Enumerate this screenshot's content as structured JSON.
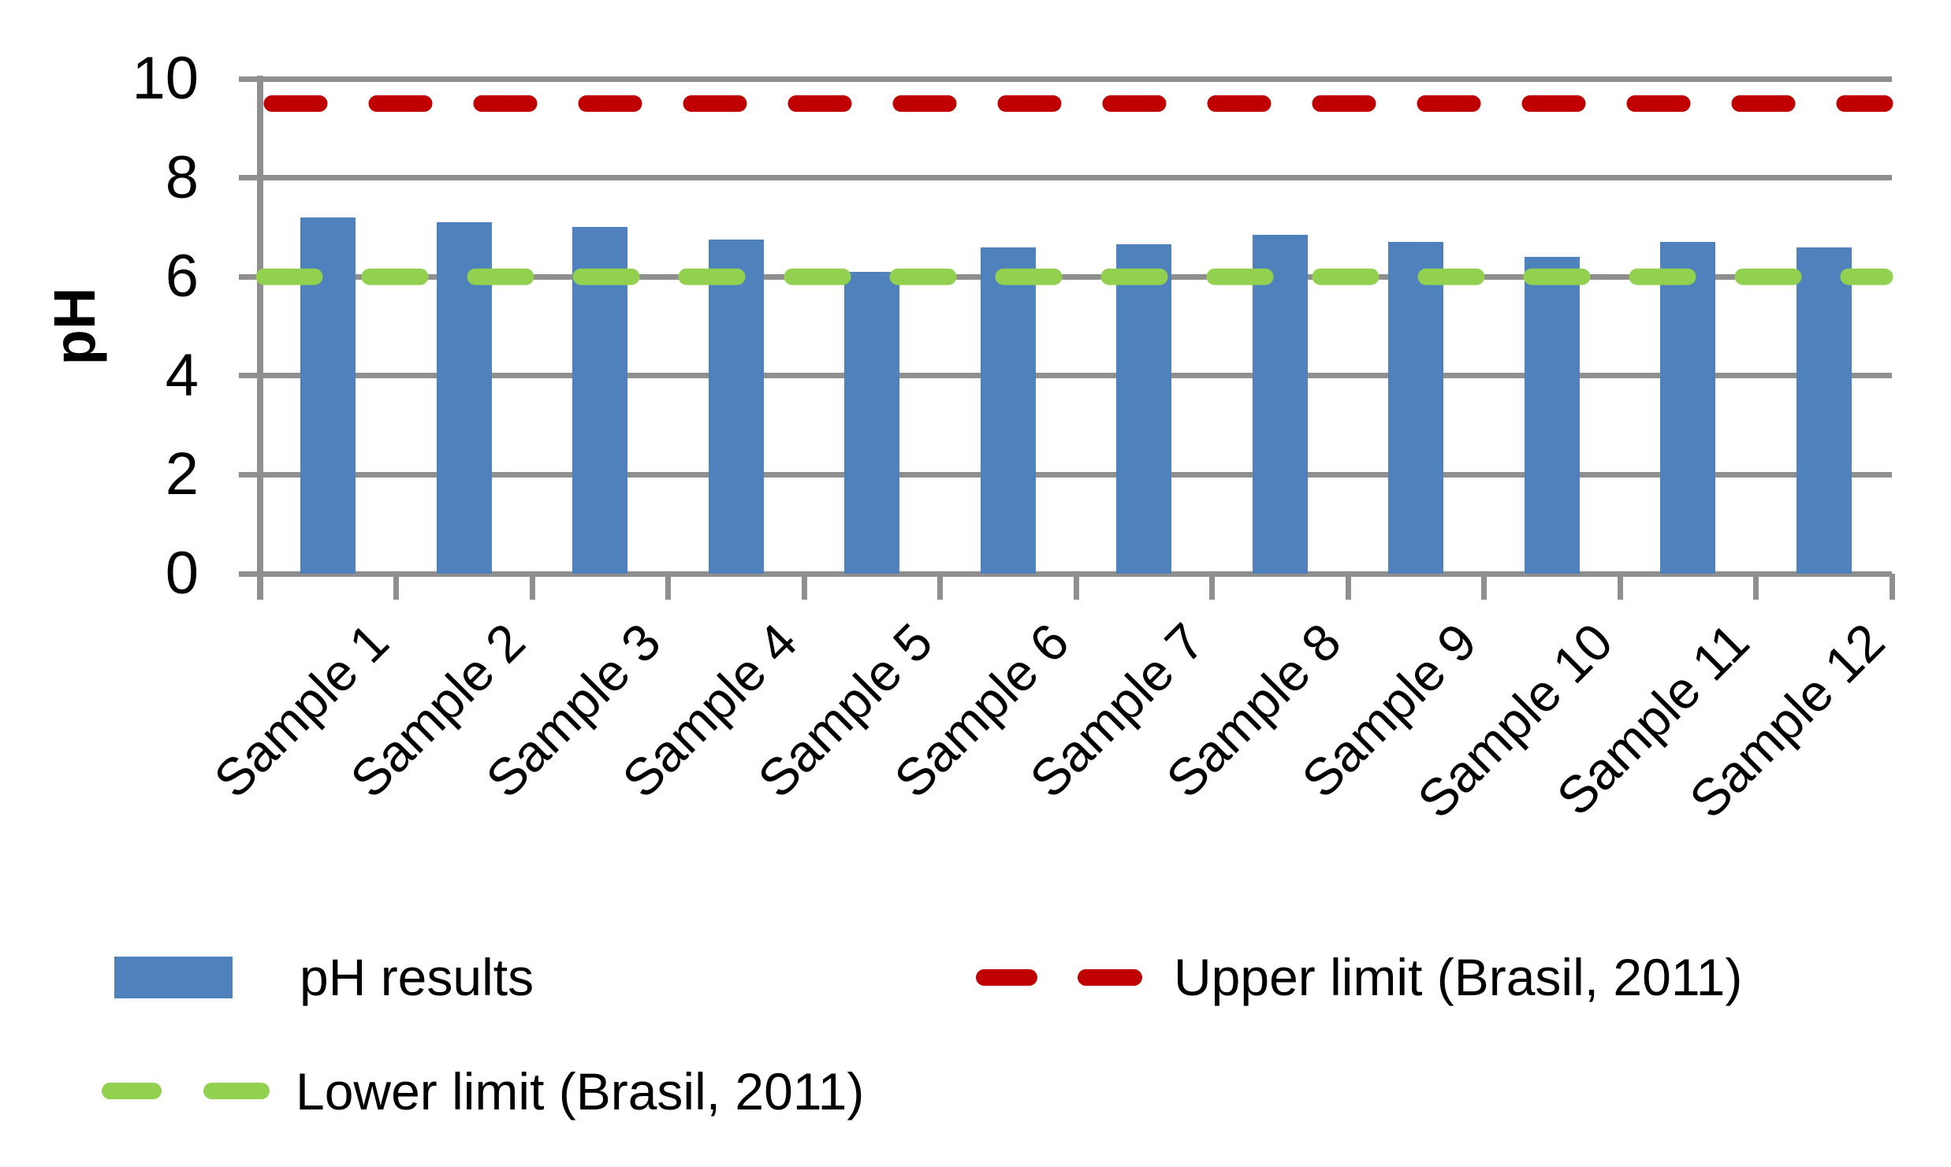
{
  "chart_data": {
    "type": "bar",
    "title": "",
    "ylabel": "pH",
    "ylim": [
      0,
      10
    ],
    "ytick_step": 2,
    "yticks": [
      "0",
      "2",
      "4",
      "6",
      "8",
      "10"
    ],
    "grid": true,
    "legend_position": "bottom",
    "categories": [
      "Sample 1",
      "Sample 2",
      "Sample 3",
      "Sample 4",
      "Sample 5",
      "Sample 6",
      "Sample 7",
      "Sample 8",
      "Sample 9",
      "Sample 10",
      "Sample 11",
      "Sample 12"
    ],
    "series": [
      {
        "name": "pH results",
        "color": "#4F81BD",
        "values": [
          7.2,
          7.1,
          7.0,
          6.75,
          6.1,
          6.6,
          6.65,
          6.85,
          6.7,
          6.4,
          6.7,
          6.6
        ]
      }
    ],
    "reference_lines": [
      {
        "name": "Upper limit (Brasil, 2011)",
        "value": 9.5,
        "color": "#C00000",
        "style": "dashed"
      },
      {
        "name": "Lower limit (Brasil, 2011)",
        "value": 6.0,
        "color": "#92D050",
        "style": "dashed"
      }
    ]
  }
}
